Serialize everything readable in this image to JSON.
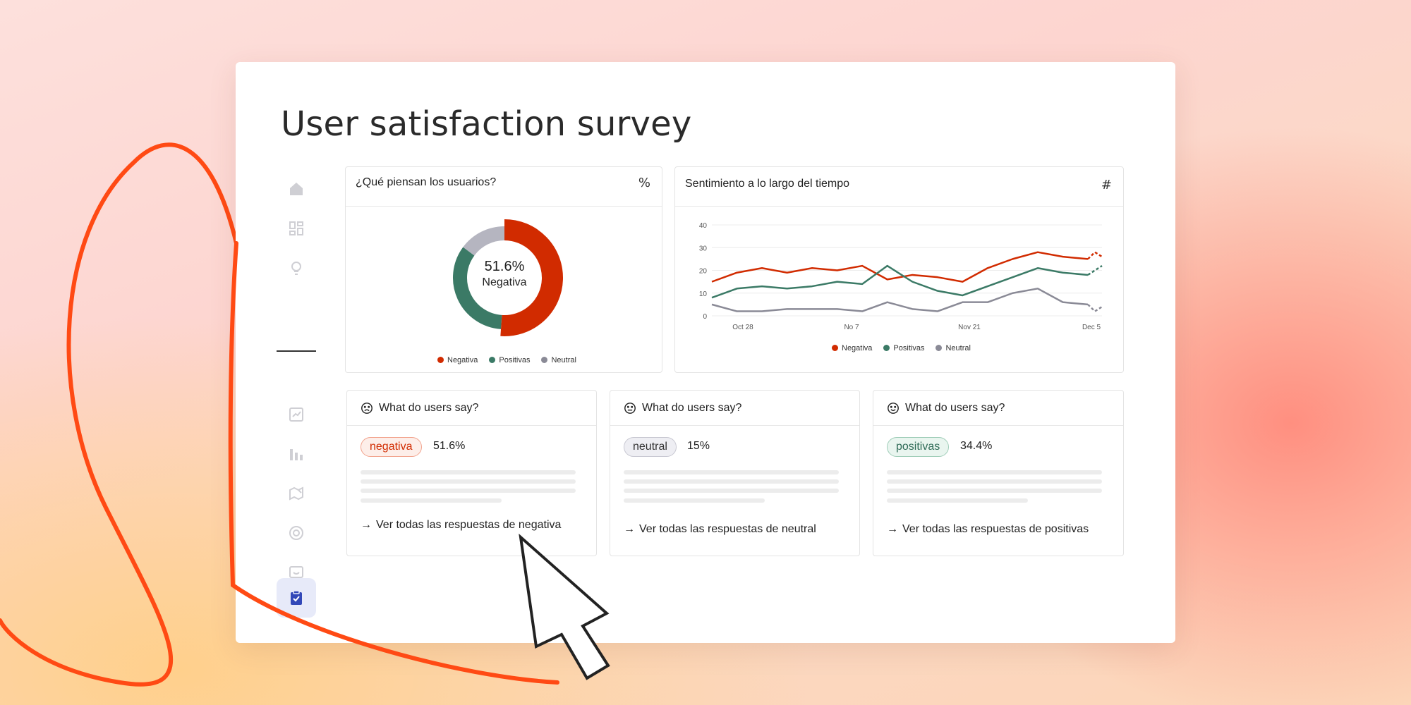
{
  "page": {
    "title": "User satisfaction survey"
  },
  "sidebar": {
    "items": [
      {
        "icon": "home-icon"
      },
      {
        "icon": "dashboard-icon"
      },
      {
        "icon": "lightbulb-icon"
      },
      {
        "icon": "line-chart-icon"
      },
      {
        "icon": "bar-chart-icon"
      },
      {
        "icon": "map-edit-icon"
      },
      {
        "icon": "at-sign-icon"
      },
      {
        "icon": "message-box-icon"
      },
      {
        "icon": "clipboard-check-icon",
        "active": true
      }
    ],
    "active_color": "#3248b8"
  },
  "donut_panel": {
    "title": "¿Qué piensan los usuarios?",
    "tool_label": "%",
    "center_value": "51.6%",
    "center_label": "Negativa",
    "legend": [
      "Negativa",
      "Positivas",
      "Neutral"
    ]
  },
  "line_panel": {
    "title": "Sentimiento a lo largo del tiempo",
    "tool_label": "#",
    "legend": [
      "Negativa",
      "Positivas",
      "Neutral"
    ]
  },
  "colors": {
    "negativa": "#d12b00",
    "positivas": "#3b7a66",
    "neutral": "#8a8a96",
    "neutral_donut": "#b5b5c0"
  },
  "chart_data": [
    {
      "type": "pie",
      "variant": "donut",
      "categories": [
        "Negativa",
        "Positivas",
        "Neutral"
      ],
      "values": [
        51.6,
        34.4,
        15
      ]
    },
    {
      "type": "line",
      "x_ticks": [
        "Oct 28",
        "No 7",
        "Nov 21",
        "Dec 5"
      ],
      "ylim": [
        0,
        40
      ],
      "y_ticks": [
        "0",
        "10",
        "20",
        "30",
        "40"
      ],
      "grid": true,
      "series": [
        {
          "name": "Negativa",
          "values": [
            15,
            19,
            21,
            19,
            21,
            20,
            22,
            16,
            18,
            17,
            15,
            21,
            25,
            28,
            26,
            25
          ],
          "projected": [
            28,
            26
          ]
        },
        {
          "name": "Positivas",
          "values": [
            8,
            12,
            13,
            12,
            13,
            15,
            14,
            22,
            15,
            11,
            9,
            13,
            17,
            21,
            19,
            18
          ],
          "projected": [
            20,
            22
          ]
        },
        {
          "name": "Neutral",
          "values": [
            5,
            2,
            2,
            3,
            3,
            3,
            2,
            6,
            3,
            2,
            6,
            6,
            10,
            12,
            6,
            5
          ],
          "projected": [
            2,
            4
          ]
        }
      ]
    }
  ],
  "say_cards": [
    {
      "title": "What do users say?",
      "face": "sad-face-icon",
      "pill": "negativa",
      "percent": "51.6%",
      "link": "Ver todas las respuestas de negativa"
    },
    {
      "title": "What do users say?",
      "face": "neutral-face-icon",
      "pill": "neutral",
      "percent": "15%",
      "link": "Ver todas las respuestas de neutral"
    },
    {
      "title": "What do users say?",
      "face": "happy-face-icon",
      "pill": "positivas",
      "percent": "34.4%",
      "link": "Ver todas las respuestas de positivas"
    }
  ]
}
